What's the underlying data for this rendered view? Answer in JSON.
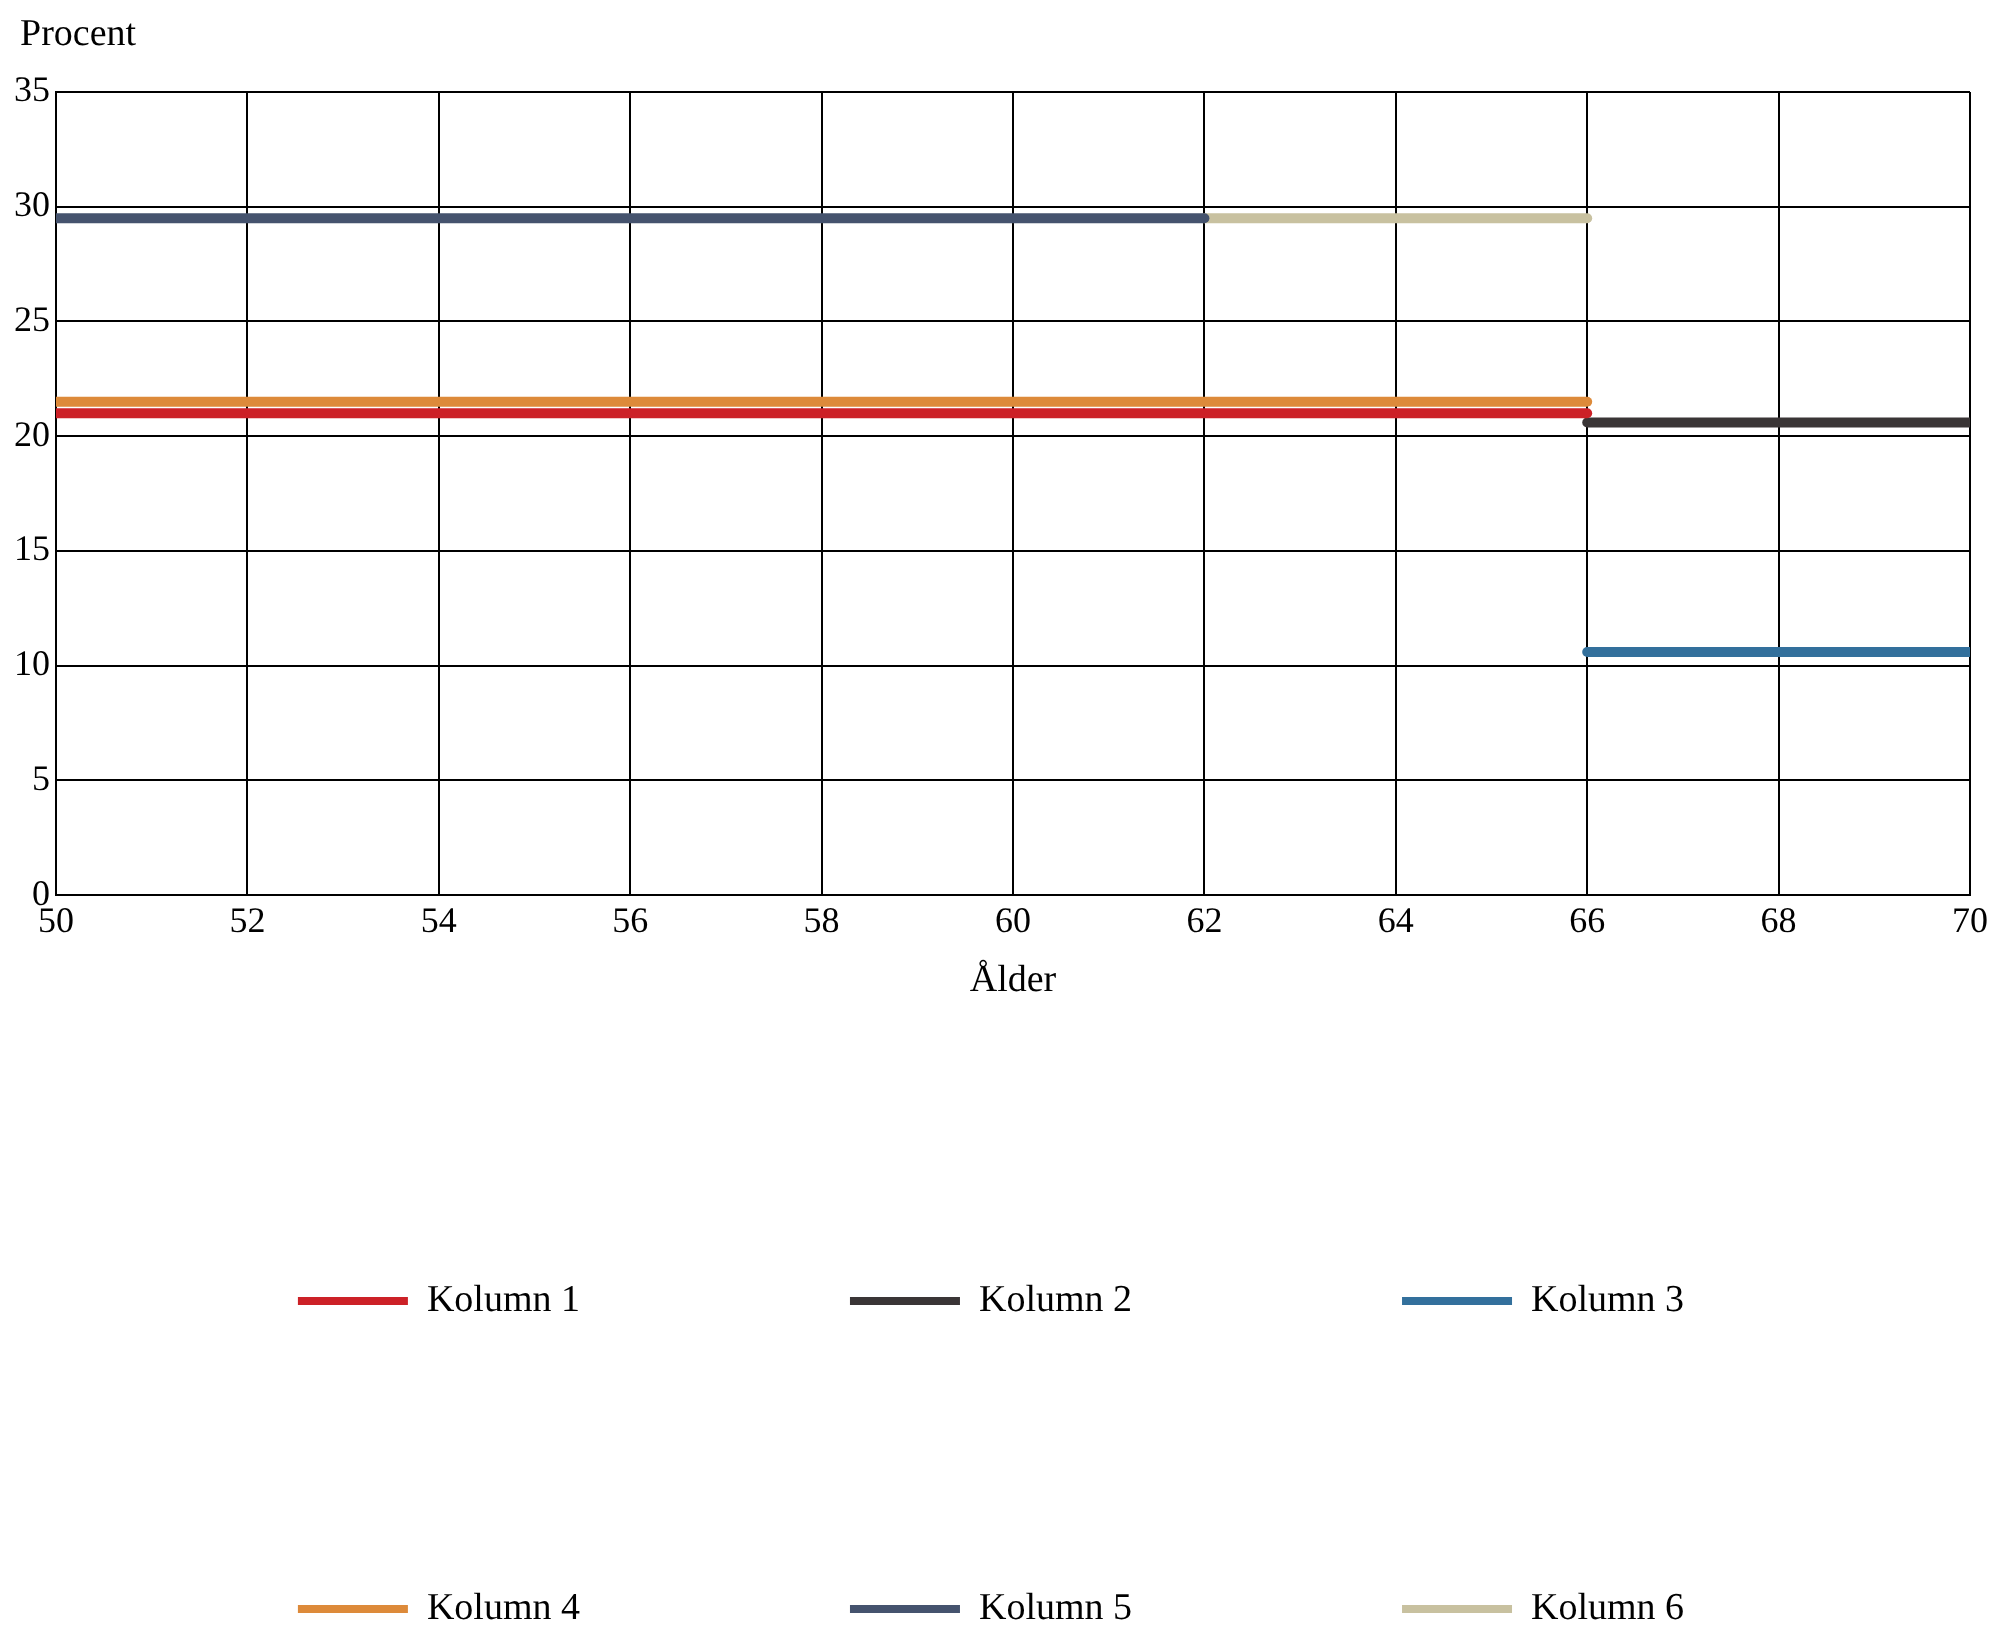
{
  "chart_data": {
    "type": "line",
    "xlabel": "Ålder",
    "ylabel": "Procent",
    "xlim": [
      50,
      70
    ],
    "xticks": [
      50,
      52,
      54,
      56,
      58,
      60,
      62,
      64,
      66,
      68,
      70
    ],
    "ylim": [
      0,
      35
    ],
    "yticks": [
      0,
      5,
      10,
      15,
      20,
      25,
      30,
      35
    ],
    "grid": true,
    "legend": "bottom",
    "marker": "none",
    "line_style": "solid",
    "series": [
      {
        "name": "Kolumn 1",
        "color": "#cc2127",
        "x": [
          50,
          66
        ],
        "values": [
          21,
          21
        ]
      },
      {
        "name": "Kolumn 2",
        "color": "#3a3536",
        "x": [
          66,
          70
        ],
        "values": [
          20.6,
          20.6
        ]
      },
      {
        "name": "Kolumn 3",
        "color": "#33709c",
        "x": [
          66,
          70
        ],
        "values": [
          10.6,
          10.6
        ]
      },
      {
        "name": "Kolumn 4",
        "color": "#dd8a3a",
        "x": [
          50,
          66
        ],
        "values": [
          21.5,
          21.5
        ]
      },
      {
        "name": "Kolumn 5",
        "color": "#45536e",
        "x": [
          50,
          62
        ],
        "values": [
          29.5,
          29.5
        ]
      },
      {
        "name": "Kolumn 6",
        "color": "#c8c1a0",
        "x": [
          62,
          66
        ],
        "values": [
          29.5,
          29.5
        ]
      }
    ]
  }
}
